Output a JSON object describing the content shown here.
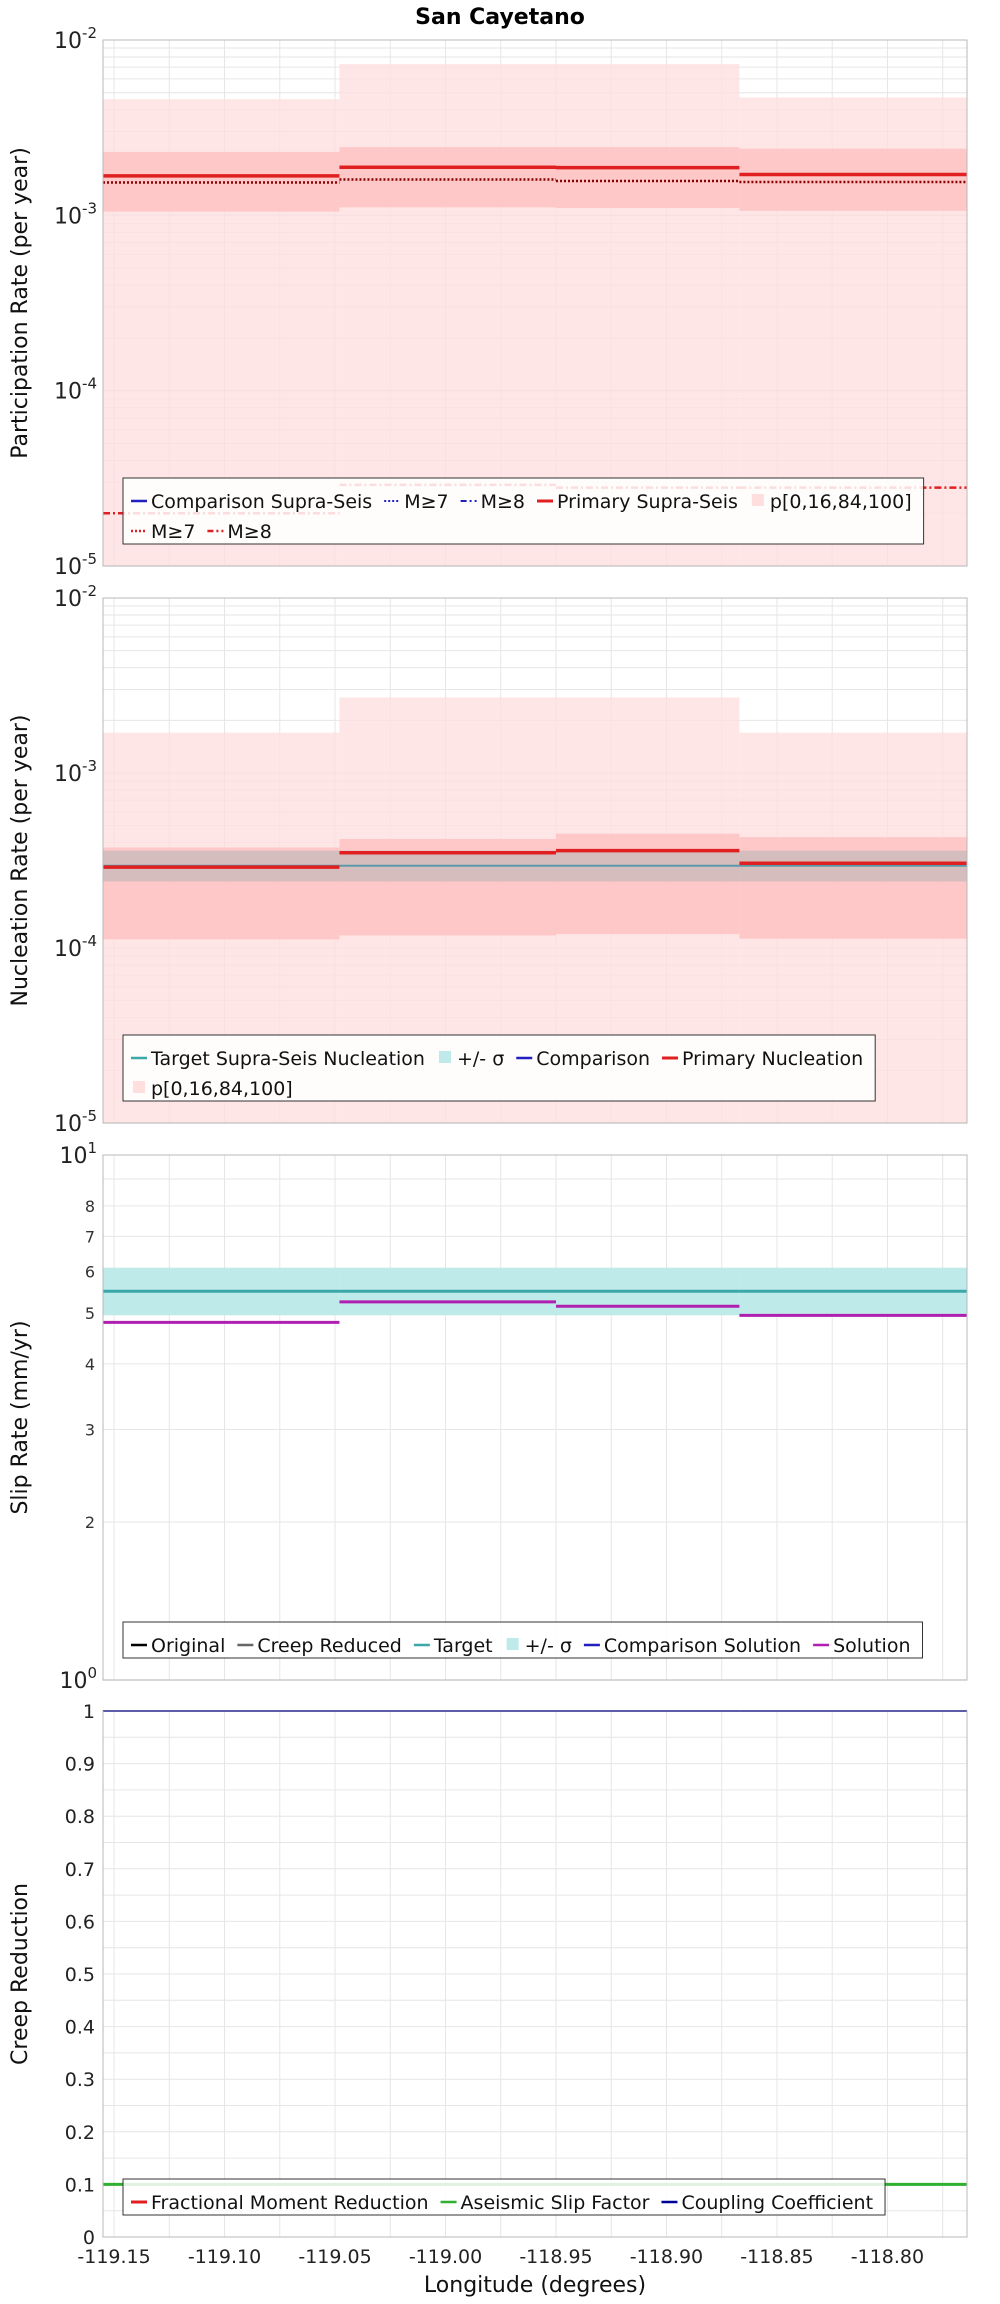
{
  "title": "San Cayetano",
  "colors": {
    "band_light": "#ffdede",
    "band_mid": "#ffc2c2",
    "gray_band": "#b4b4b4",
    "primary": "#e02020",
    "blue": "#2020c0",
    "cyan": "#3aa8a8",
    "cyan_band": "#bfeaea",
    "magenta": "#b020b0",
    "green": "#30b030",
    "navy": "#000099",
    "grid": "#e6e6e6"
  },
  "chart_data": [
    {
      "type": "line",
      "panel": "participation",
      "ylabel": "Participation Rate (per year)",
      "yscale": "log",
      "ylim": [
        1e-05,
        0.01
      ],
      "xlim": [
        -119.155,
        -118.764
      ],
      "y_tick_labels": [
        {
          "base": "10",
          "exp": "-5",
          "value": 1e-05
        },
        {
          "base": "10",
          "exp": "-4",
          "value": 0.0001
        },
        {
          "base": "10",
          "exp": "-3",
          "value": 0.001
        },
        {
          "base": "10",
          "exp": "-2",
          "value": 0.01
        }
      ],
      "segments_x": [
        [
          -119.155,
          -119.048
        ],
        [
          -119.048,
          -118.95
        ],
        [
          -118.95,
          -118.867
        ],
        [
          -118.867,
          -118.764
        ]
      ],
      "bands": [
        {
          "name": "p[0,100]",
          "lower": [
            1e-05,
            1e-05,
            1e-05,
            1e-05
          ],
          "upper": [
            0.0046,
            0.0073,
            0.0073,
            0.0047
          ]
        },
        {
          "name": "p[16,84]",
          "lower": [
            0.00105,
            0.00111,
            0.0011,
            0.00106
          ],
          "upper": [
            0.0023,
            0.00245,
            0.00245,
            0.0024
          ]
        }
      ],
      "series": [
        {
          "name": "Primary Supra-Seis",
          "values": [
            0.00168,
            0.00188,
            0.00187,
            0.00171
          ]
        },
        {
          "name": "M≥7",
          "values": [
            0.00154,
            0.0016,
            0.00157,
            0.00155
          ]
        },
        {
          "name": "M≥8",
          "values": [
            2e-05,
            2.9e-05,
            2.8e-05,
            2.8e-05
          ]
        }
      ],
      "legend": {
        "rows": [
          [
            {
              "label": "Comparison Supra-Seis",
              "swatch": "solid-blue"
            },
            {
              "label": "M≥7",
              "swatch": "dotted-blue"
            },
            {
              "label": "M≥8",
              "swatch": "dashdot-blue"
            },
            {
              "label": "Primary Supra-Seis",
              "swatch": "solid-red"
            },
            {
              "label": "p[0,16,84,100]",
              "swatch": "band-pink"
            }
          ],
          [
            {
              "label": "M≥7",
              "swatch": "dotted-red"
            },
            {
              "label": "M≥8",
              "swatch": "dashdot-red"
            }
          ]
        ]
      }
    },
    {
      "type": "line",
      "panel": "nucleation",
      "ylabel": "Nucleation Rate (per year)",
      "yscale": "log",
      "ylim": [
        1e-05,
        0.01
      ],
      "xlim": [
        -119.155,
        -118.764
      ],
      "y_tick_labels": [
        {
          "base": "10",
          "exp": "-5",
          "value": 1e-05
        },
        {
          "base": "10",
          "exp": "-4",
          "value": 0.0001
        },
        {
          "base": "10",
          "exp": "-3",
          "value": 0.001
        },
        {
          "base": "10",
          "exp": "-2",
          "value": 0.01
        }
      ],
      "segments_x": [
        [
          -119.155,
          -119.048
        ],
        [
          -119.048,
          -118.95
        ],
        [
          -118.95,
          -118.867
        ],
        [
          -118.867,
          -118.764
        ]
      ],
      "bands": [
        {
          "name": "p[0,100]",
          "lower": [
            1e-05,
            1e-05,
            1e-05,
            1e-05
          ],
          "upper": [
            0.0017,
            0.0027,
            0.0027,
            0.0017
          ]
        },
        {
          "name": "p[16,84]",
          "lower": [
            0.000112,
            0.000118,
            0.00012,
            0.000113
          ],
          "upper": [
            0.000375,
            0.00042,
            0.00045,
            0.00043
          ]
        },
        {
          "name": "+/- σ",
          "lower": [
            0.00024,
            0.00024,
            0.00024,
            0.00024
          ],
          "upper": [
            0.00036,
            0.00036,
            0.00036,
            0.00036
          ]
        }
      ],
      "series": [
        {
          "name": "Target Supra-Seis Nucleation",
          "values": [
            0.000295,
            0.000295,
            0.000295,
            0.000295
          ]
        },
        {
          "name": "Primary Nucleation",
          "values": [
            0.00029,
            0.00035,
            0.00036,
            0.000305
          ]
        }
      ],
      "legend": {
        "rows": [
          [
            {
              "label": "Target Supra-Seis Nucleation",
              "swatch": "solid-cyan"
            },
            {
              "label": "+/- σ",
              "swatch": "band-cyan"
            },
            {
              "label": "Comparison",
              "swatch": "solid-blue"
            },
            {
              "label": "Primary Nucleation",
              "swatch": "solid-red"
            }
          ],
          [
            {
              "label": "p[0,16,84,100]",
              "swatch": "band-pink"
            }
          ]
        ]
      }
    },
    {
      "type": "line",
      "panel": "slip",
      "ylabel": "Slip Rate (mm/yr)",
      "yscale": "log",
      "ylim": [
        1,
        10
      ],
      "xlim": [
        -119.155,
        -118.764
      ],
      "y_tick_labels": [
        {
          "base": "10",
          "exp": "0",
          "value": 1
        },
        {
          "base": "10",
          "exp": "1",
          "value": 10
        }
      ],
      "y_minor_tick_labels": [
        {
          "label": "2",
          "value": 2
        },
        {
          "label": "3",
          "value": 3
        },
        {
          "label": "4",
          "value": 4
        },
        {
          "label": "5",
          "value": 5
        },
        {
          "label": "6",
          "value": 6
        },
        {
          "label": "7",
          "value": 7
        },
        {
          "label": "8",
          "value": 8
        }
      ],
      "segments_x": [
        [
          -119.155,
          -119.048
        ],
        [
          -119.048,
          -118.95
        ],
        [
          -118.95,
          -118.867
        ],
        [
          -118.867,
          -118.764
        ]
      ],
      "bands": [
        {
          "name": "+/- σ",
          "lower": [
            4.95,
            4.95,
            4.95,
            4.95
          ],
          "upper": [
            6.1,
            6.1,
            6.1,
            6.1
          ]
        }
      ],
      "series": [
        {
          "name": "Target",
          "values": [
            5.5,
            5.5,
            5.5,
            5.5
          ]
        },
        {
          "name": "Solution",
          "values": [
            4.8,
            5.25,
            5.15,
            4.95
          ]
        }
      ],
      "legend": {
        "rows": [
          [
            {
              "label": "Original",
              "swatch": "solid-black"
            },
            {
              "label": "Creep Reduced",
              "swatch": "solid-gray"
            },
            {
              "label": "Target",
              "swatch": "solid-cyan"
            },
            {
              "label": "+/- σ",
              "swatch": "band-cyan"
            },
            {
              "label": "Comparison Solution",
              "swatch": "solid-blue"
            },
            {
              "label": "Solution",
              "swatch": "solid-magenta"
            }
          ]
        ]
      }
    },
    {
      "type": "line",
      "panel": "creep",
      "ylabel": "Creep Reduction",
      "xlabel": "Longitude (degrees)",
      "yscale": "linear",
      "ylim": [
        0,
        1
      ],
      "xlim": [
        -119.155,
        -118.764
      ],
      "y_tick_labels": [
        {
          "label": "0",
          "value": 0
        },
        {
          "label": "0.1",
          "value": 0.1
        },
        {
          "label": "0.2",
          "value": 0.2
        },
        {
          "label": "0.3",
          "value": 0.3
        },
        {
          "label": "0.4",
          "value": 0.4
        },
        {
          "label": "0.5",
          "value": 0.5
        },
        {
          "label": "0.6",
          "value": 0.6
        },
        {
          "label": "0.7",
          "value": 0.7
        },
        {
          "label": "0.8",
          "value": 0.8
        },
        {
          "label": "0.9",
          "value": 0.9
        },
        {
          "label": "1",
          "value": 1
        }
      ],
      "x_tick_labels": [
        {
          "label": "-119.15",
          "value": -119.15
        },
        {
          "label": "-119.10",
          "value": -119.1
        },
        {
          "label": "-119.05",
          "value": -119.05
        },
        {
          "label": "-119.00",
          "value": -119.0
        },
        {
          "label": "-118.95",
          "value": -118.95
        },
        {
          "label": "-118.90",
          "value": -118.9
        },
        {
          "label": "-118.85",
          "value": -118.85
        },
        {
          "label": "-118.80",
          "value": -118.8
        }
      ],
      "series": [
        {
          "name": "Aseismic Slip Factor",
          "values": [
            0.1,
            0.1,
            0.1,
            0.1
          ]
        },
        {
          "name": "Coupling Coefficient",
          "values": [
            1,
            1,
            1,
            1
          ]
        }
      ],
      "legend": {
        "rows": [
          [
            {
              "label": "Fractional Moment Reduction",
              "swatch": "solid-red"
            },
            {
              "label": "Aseismic Slip Factor",
              "swatch": "solid-green"
            },
            {
              "label": "Coupling Coefficient",
              "swatch": "solid-navy"
            }
          ]
        ]
      }
    }
  ]
}
